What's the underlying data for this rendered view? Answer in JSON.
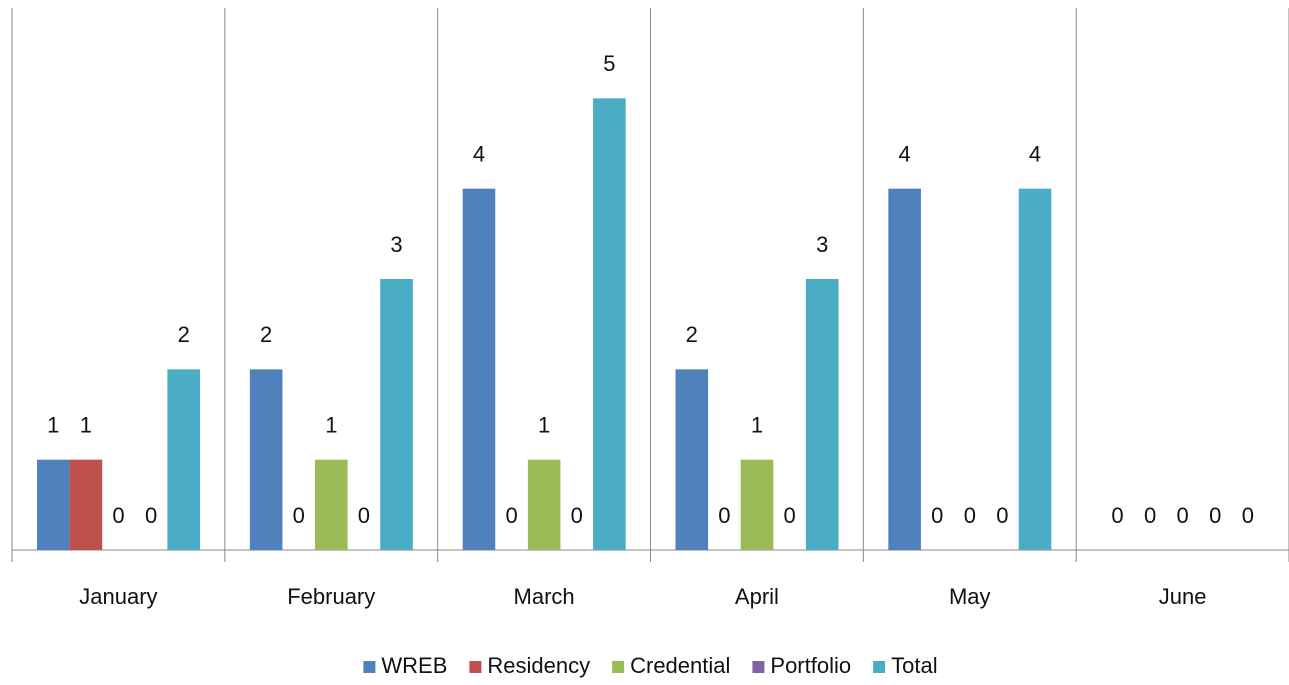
{
  "chart_data": {
    "type": "bar",
    "categories": [
      "January",
      "February",
      "March",
      "April",
      "May",
      "June"
    ],
    "series": [
      {
        "name": "WREB",
        "color": "#4f81bd",
        "values": [
          1,
          2,
          4,
          2,
          4,
          0
        ]
      },
      {
        "name": "Residency",
        "color": "#c0504d",
        "values": [
          1,
          0,
          0,
          0,
          0,
          0
        ]
      },
      {
        "name": "Credential",
        "color": "#9bbb59",
        "values": [
          0,
          1,
          1,
          1,
          0,
          0
        ]
      },
      {
        "name": "Portfolio",
        "color": "#8064a2",
        "values": [
          0,
          0,
          0,
          0,
          0,
          0
        ]
      },
      {
        "name": "Total",
        "color": "#4bacc6",
        "values": [
          2,
          3,
          5,
          3,
          4,
          0
        ]
      }
    ],
    "ylim": [
      0,
      6
    ],
    "legend": "bottom"
  }
}
